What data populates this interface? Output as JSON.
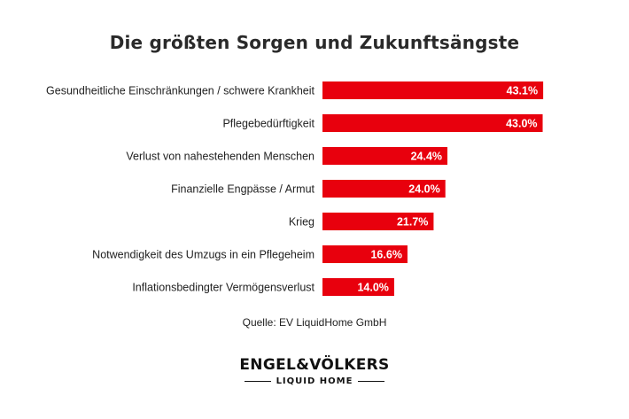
{
  "chart_data": {
    "type": "bar",
    "orientation": "horizontal",
    "title": "Die größten Sorgen und Zukunftsängste",
    "categories": [
      "Gesundheitliche Einschränkungen / schwere Krankheit",
      "Pflegebedürftigkeit",
      "Verlust von nahestehenden Menschen",
      "Finanzielle Engpässe / Armut",
      "Krieg",
      "Notwendigkeit des Umzugs in ein Pflegeheim",
      "Inflationsbedingter Vermögensverlust"
    ],
    "values": [
      43.1,
      43.0,
      24.4,
      24.0,
      21.7,
      16.6,
      14.0
    ],
    "value_labels": [
      "43.1%",
      "43.0%",
      "24.4%",
      "24.0%",
      "21.7%",
      "16.6%",
      "14.0%"
    ],
    "unit": "%",
    "bar_color": "#e8000d",
    "label_color": "#ffffff",
    "grid": false,
    "legend": "none"
  },
  "source": "Quelle: EV LiquidHome GmbH",
  "logo": {
    "main": "ENGEL&VÖLKERS",
    "sub": "LIQUID HOME"
  }
}
